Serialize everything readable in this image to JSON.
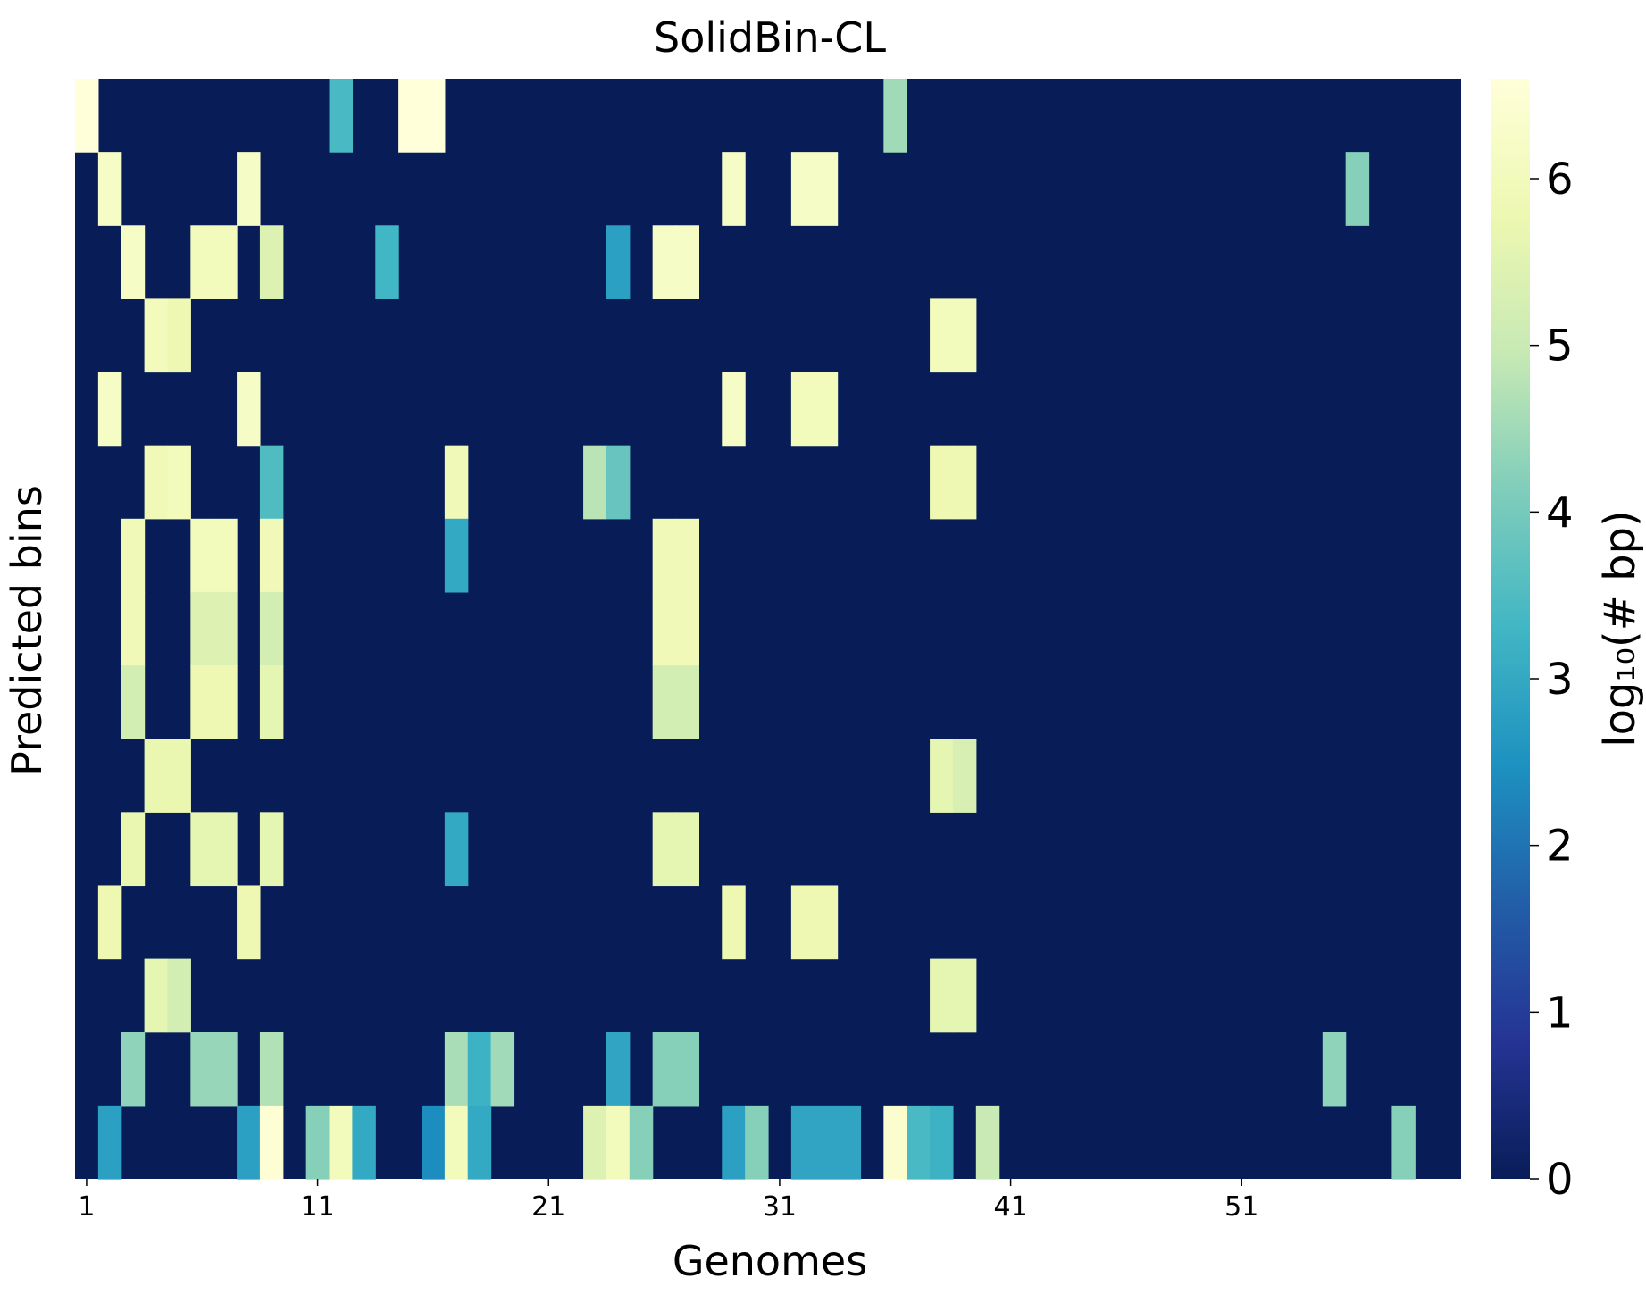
{
  "chart_data": {
    "type": "heatmap",
    "title": "SolidBin-CL",
    "xlabel": "Genomes",
    "ylabel": "Predicted bins",
    "colorbar_label": "log₁₀(# bp)",
    "colorscale": "YlGnBu",
    "vmin": 0,
    "vmax": 6.6,
    "n_cols": 60,
    "n_rows": 15,
    "x_tick_labels": [
      {
        "col": 1,
        "label": "1"
      },
      {
        "col": 11,
        "label": "11"
      },
      {
        "col": 21,
        "label": "21"
      },
      {
        "col": 31,
        "label": "31"
      },
      {
        "col": 41,
        "label": "41"
      },
      {
        "col": 51,
        "label": "51"
      }
    ],
    "colorbar_ticks": [
      "0",
      "1",
      "2",
      "3",
      "4",
      "5",
      "6"
    ],
    "cells": [
      [
        1,
        1,
        6.6
      ],
      [
        1,
        12,
        3.4
      ],
      [
        1,
        15,
        6.6
      ],
      [
        1,
        16,
        6.6
      ],
      [
        1,
        36,
        4.5
      ],
      [
        2,
        2,
        6.2
      ],
      [
        2,
        8,
        6.2
      ],
      [
        2,
        29,
        6.2
      ],
      [
        2,
        32,
        6.2
      ],
      [
        2,
        33,
        6.2
      ],
      [
        2,
        56,
        4.2
      ],
      [
        3,
        3,
        6.2
      ],
      [
        3,
        6,
        6.0
      ],
      [
        3,
        7,
        6.0
      ],
      [
        3,
        9,
        5.4
      ],
      [
        3,
        14,
        3.3
      ],
      [
        3,
        24,
        2.8
      ],
      [
        3,
        26,
        6.2
      ],
      [
        3,
        27,
        6.2
      ],
      [
        4,
        4,
        6.0
      ],
      [
        4,
        5,
        5.8
      ],
      [
        4,
        38,
        6.0
      ],
      [
        4,
        39,
        6.0
      ],
      [
        5,
        2,
        6.2
      ],
      [
        5,
        8,
        6.2
      ],
      [
        5,
        29,
        6.2
      ],
      [
        5,
        32,
        6.0
      ],
      [
        5,
        33,
        6.0
      ],
      [
        6,
        4,
        5.9
      ],
      [
        6,
        5,
        6.0
      ],
      [
        6,
        9,
        3.5
      ],
      [
        6,
        17,
        5.9
      ],
      [
        6,
        23,
        4.8
      ],
      [
        6,
        24,
        3.8
      ],
      [
        6,
        38,
        5.8
      ],
      [
        6,
        39,
        5.8
      ],
      [
        7,
        3,
        5.9
      ],
      [
        7,
        6,
        6.0
      ],
      [
        7,
        7,
        6.0
      ],
      [
        7,
        9,
        5.9
      ],
      [
        7,
        17,
        3.0
      ],
      [
        7,
        26,
        5.9
      ],
      [
        7,
        27,
        5.9
      ],
      [
        8,
        3,
        5.9
      ],
      [
        8,
        6,
        5.4
      ],
      [
        8,
        7,
        5.4
      ],
      [
        8,
        9,
        5.2
      ],
      [
        8,
        26,
        5.9
      ],
      [
        8,
        27,
        5.9
      ],
      [
        9,
        3,
        5.2
      ],
      [
        9,
        6,
        5.8
      ],
      [
        9,
        7,
        5.8
      ],
      [
        9,
        9,
        5.6
      ],
      [
        9,
        26,
        5.2
      ],
      [
        9,
        27,
        5.2
      ],
      [
        10,
        4,
        5.7
      ],
      [
        10,
        5,
        5.7
      ],
      [
        10,
        38,
        5.6
      ],
      [
        10,
        39,
        5.3
      ],
      [
        11,
        3,
        5.7
      ],
      [
        11,
        6,
        5.6
      ],
      [
        11,
        7,
        5.6
      ],
      [
        11,
        9,
        5.6
      ],
      [
        11,
        17,
        3.0
      ],
      [
        11,
        26,
        5.6
      ],
      [
        11,
        27,
        5.6
      ],
      [
        12,
        2,
        5.8
      ],
      [
        12,
        8,
        5.8
      ],
      [
        12,
        29,
        5.8
      ],
      [
        12,
        32,
        5.8
      ],
      [
        12,
        33,
        5.8
      ],
      [
        13,
        4,
        5.6
      ],
      [
        13,
        5,
        5.2
      ],
      [
        13,
        38,
        5.6
      ],
      [
        13,
        39,
        5.6
      ],
      [
        14,
        3,
        4.3
      ],
      [
        14,
        6,
        4.4
      ],
      [
        14,
        7,
        4.4
      ],
      [
        14,
        9,
        4.7
      ],
      [
        14,
        17,
        4.6
      ],
      [
        14,
        18,
        3.2
      ],
      [
        14,
        19,
        4.5
      ],
      [
        14,
        24,
        2.9
      ],
      [
        14,
        26,
        4.2
      ],
      [
        14,
        27,
        4.2
      ],
      [
        14,
        55,
        4.3
      ],
      [
        15,
        2,
        2.8
      ],
      [
        15,
        8,
        2.8
      ],
      [
        15,
        9,
        6.5
      ],
      [
        15,
        11,
        4.2
      ],
      [
        15,
        12,
        6.0
      ],
      [
        15,
        13,
        3.0
      ],
      [
        15,
        16,
        2.4
      ],
      [
        15,
        17,
        6.0
      ],
      [
        15,
        18,
        3.0
      ],
      [
        15,
        23,
        5.4
      ],
      [
        15,
        24,
        6.0
      ],
      [
        15,
        25,
        4.2
      ],
      [
        15,
        29,
        2.8
      ],
      [
        15,
        30,
        4.2
      ],
      [
        15,
        32,
        2.9
      ],
      [
        15,
        33,
        2.9
      ],
      [
        15,
        34,
        2.9
      ],
      [
        15,
        36,
        6.4
      ],
      [
        15,
        37,
        3.4
      ],
      [
        15,
        38,
        3.2
      ],
      [
        15,
        40,
        5.0
      ],
      [
        15,
        58,
        4.2
      ]
    ]
  }
}
